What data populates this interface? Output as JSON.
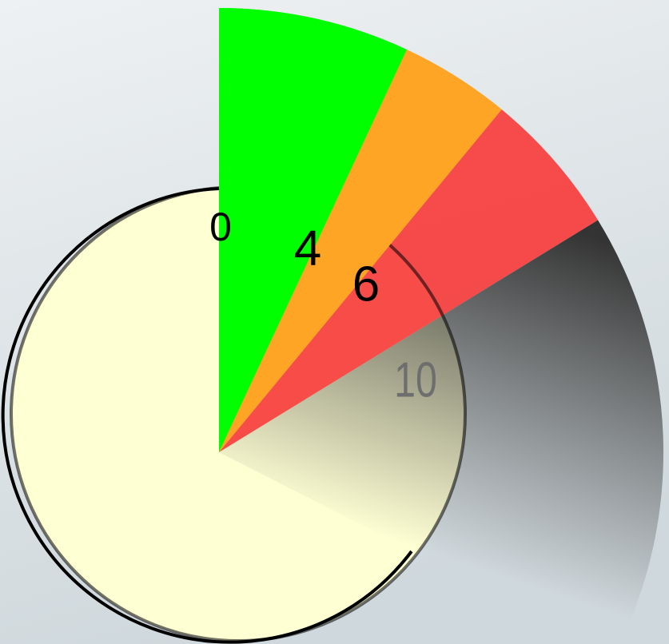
{
  "gauge": {
    "labels": [
      {
        "text": "0",
        "color": "#000000"
      },
      {
        "text": "4",
        "color": "#000000"
      },
      {
        "text": "6",
        "color": "#000000"
      },
      {
        "text": "10",
        "color": "#6e6e6e"
      }
    ],
    "bands": [
      {
        "color": "#00ff00"
      },
      {
        "color": "#ffa526"
      },
      {
        "color": "#f73d3d"
      },
      {
        "color": "#333333"
      }
    ],
    "dial_color": "#ffffd4"
  }
}
